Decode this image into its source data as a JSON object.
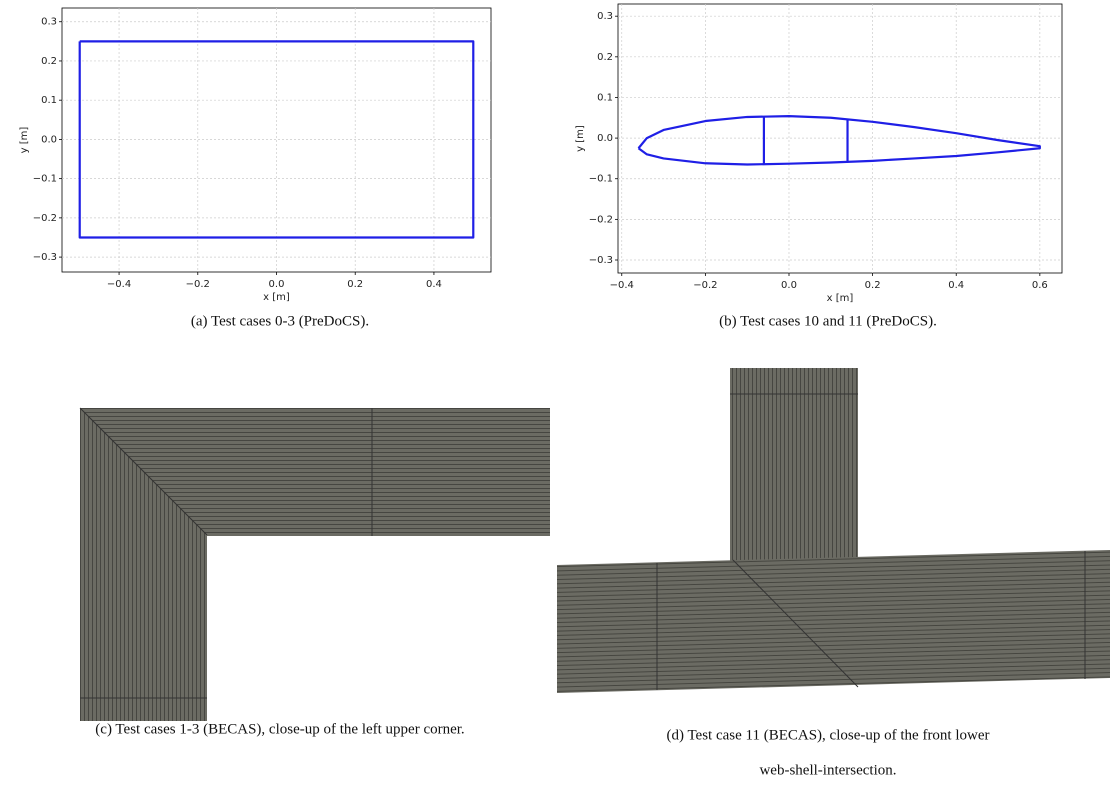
{
  "chart_data": [
    {
      "type": "line",
      "xlabel": "x [m]",
      "ylabel": "y [m]",
      "xlim": [
        -0.545,
        0.545
      ],
      "xticks": [
        {
          "value": -0.4,
          "label": "−0.4"
        },
        {
          "value": -0.2,
          "label": "−0.2"
        },
        {
          "value": 0,
          "label": "0.0"
        },
        0.2,
        0.4
      ],
      "ylim": [
        -0.338,
        0.335
      ],
      "yticks": [
        {
          "value": -0.3,
          "label": "−0.3"
        },
        {
          "value": -0.2,
          "label": "−0.2"
        },
        {
          "value": -0.1,
          "label": "−0.1"
        },
        {
          "value": 0,
          "label": "0.0"
        },
        0.1,
        0.2,
        0.3
      ],
      "grid": true,
      "series": [
        {
          "color": "#1f1fe6",
          "x": [
            -0.5,
            0.5,
            0.5,
            -0.5,
            -0.5
          ],
          "values": [
            0.25,
            0.25,
            -0.25,
            -0.25,
            0.25
          ]
        }
      ],
      "caption": "(a) Test cases 0-3 (PreDoCS)."
    },
    {
      "type": "line",
      "xlabel": "x [m]",
      "ylabel": "y [m]",
      "xlim": [
        -0.409,
        0.653
      ],
      "xticks": [
        {
          "value": -0.4,
          "label": "−0.4"
        },
        {
          "value": -0.2,
          "label": "−0.2"
        },
        {
          "value": 0,
          "label": "0.0"
        },
        0.2,
        0.4,
        0.6
      ],
      "ylim": [
        -0.332,
        0.33
      ],
      "yticks": [
        {
          "value": -0.3,
          "label": "−0.3"
        },
        {
          "value": -0.2,
          "label": "−0.2"
        },
        {
          "value": -0.1,
          "label": "−0.1"
        },
        {
          "value": 0,
          "label": "0.0"
        },
        0.1,
        0.2,
        0.3
      ],
      "grid": true,
      "series": [
        {
          "color": "#1f1fe6",
          "x": [
            -0.36,
            -0.34,
            -0.3,
            -0.2,
            -0.1,
            0.0,
            0.1,
            0.2,
            0.3,
            0.4,
            0.5,
            0.6,
            0.6,
            0.5,
            0.4,
            0.3,
            0.2,
            0.1,
            0.0,
            -0.1,
            -0.2,
            -0.3,
            -0.34,
            -0.36
          ],
          "values": [
            -0.025,
            0.0,
            0.02,
            0.042,
            0.052,
            0.054,
            0.05,
            0.04,
            0.027,
            0.012,
            -0.005,
            -0.02,
            -0.025,
            -0.035,
            -0.044,
            -0.05,
            -0.056,
            -0.06,
            -0.063,
            -0.065,
            -0.062,
            -0.05,
            -0.04,
            -0.025
          ]
        },
        {
          "color": "#1f1fe6",
          "x": [
            -0.06,
            -0.06
          ],
          "values": [
            0.054,
            -0.063
          ]
        },
        {
          "color": "#1f1fe6",
          "x": [
            0.14,
            0.14
          ],
          "values": [
            0.046,
            -0.057
          ]
        }
      ],
      "caption": "(b) Test cases 10 and 11 (PreDoCS)."
    }
  ],
  "images": [
    {
      "caption": "(c) Test cases 1-3 (BECAS), close-up of the left upper corner."
    },
    {
      "caption_lines": [
        "(d) Test case 11 (BECAS), close-up of the front lower",
        "web-shell-intersection."
      ]
    }
  ]
}
